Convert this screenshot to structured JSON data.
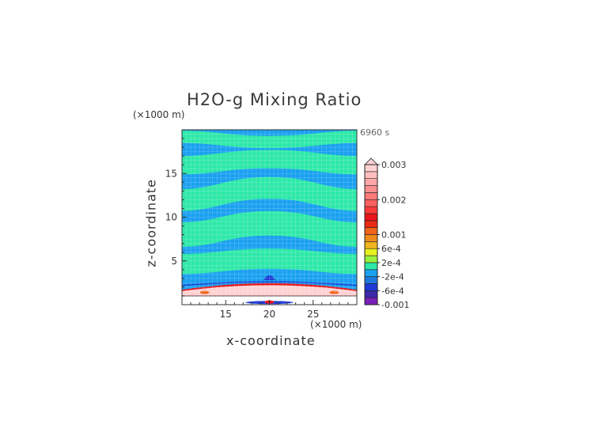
{
  "chart_data": {
    "type": "heatmap",
    "title": "H2O-g Mixing Ratio",
    "time_label": "6960 s",
    "xlabel": "x-coordinate",
    "ylabel": "z-coordinate",
    "x_unit": "(×1000 m)",
    "y_unit": "(×1000 m)",
    "xlim": [
      10,
      30
    ],
    "ylim": [
      0,
      20
    ],
    "x_ticks": [
      15,
      20,
      25
    ],
    "y_ticks": [
      5,
      10,
      15
    ],
    "colorbar": {
      "labels": [
        "0.003",
        "0.002",
        "0.001",
        "6e-4",
        "2e-4",
        "-2e-4",
        "-6e-4",
        "-0.001"
      ],
      "label_values": [
        0.003,
        0.002,
        0.001,
        0.0006,
        0.0002,
        -0.0002,
        -0.0006,
        -0.001
      ],
      "levels": [
        -0.001,
        -0.0008,
        -0.0006,
        -0.0004,
        -0.0002,
        0,
        0.0002,
        0.0004,
        0.0006,
        0.0008,
        0.001,
        0.0012,
        0.0014,
        0.0016,
        0.0018,
        0.002,
        0.0022,
        0.0024,
        0.0026,
        0.0028,
        0.003
      ],
      "colors": [
        "#7a1fb8",
        "#3a2aa8",
        "#1f3bd6",
        "#1f78e0",
        "#1aa0f0",
        "#2ee8a8",
        "#9af03c",
        "#e8f020",
        "#f0b41e",
        "#f08a1c",
        "#f0641a",
        "#e82a14",
        "#e8141a",
        "#ff3a3a",
        "#ff6060",
        "#ff7a7a",
        "#ff9090",
        "#ffa8a8",
        "#ffbdbd",
        "#ffd2d2"
      ]
    },
    "band_color_high": "#2ee8a8",
    "band_color_low": "#1aa0f0"
  }
}
